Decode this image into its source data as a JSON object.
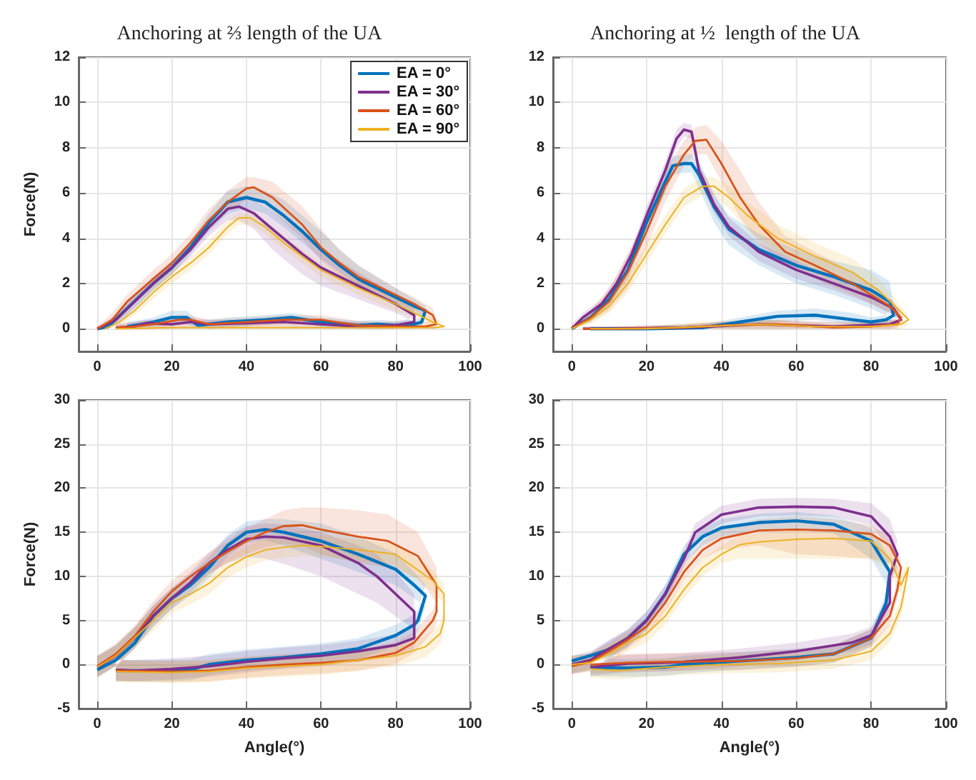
{
  "chart_data": [
    {
      "type": "line",
      "title": "Anchoring at ⅔ length of the UA",
      "ylabel": "Force(N)",
      "xlim": [
        -5,
        100
      ],
      "xticks": [
        0,
        20,
        40,
        60,
        80,
        100
      ],
      "ylim": [
        -1,
        12
      ],
      "yticks": [
        0,
        2,
        4,
        6,
        8,
        10,
        12
      ],
      "grid": true,
      "legend": "top right",
      "marker": "none",
      "series": [
        {
          "name": "EA = 0°",
          "color": "#0072bd",
          "x": [
            0,
            3,
            8,
            15,
            20,
            25,
            30,
            35,
            40,
            45,
            50,
            55,
            60,
            65,
            70,
            75,
            80,
            85,
            88,
            87,
            85,
            80,
            75,
            70,
            60,
            52,
            45,
            35,
            27,
            24,
            20,
            15,
            12,
            8
          ],
          "values": [
            0,
            0.1,
            0.9,
            2.0,
            2.7,
            3.6,
            4.7,
            5.6,
            5.8,
            5.6,
            5.0,
            4.3,
            3.5,
            2.8,
            2.2,
            1.8,
            1.4,
            1.0,
            0.8,
            0.3,
            0.2,
            0.15,
            0.2,
            0.15,
            0.3,
            0.5,
            0.4,
            0.3,
            0.15,
            0.5,
            0.5,
            0.3,
            0.2,
            0.1
          ],
          "lower": [
            0,
            0,
            0.6,
            1.7,
            2.4,
            3.3,
            4.3,
            5.1,
            5.3,
            5.1,
            4.5,
            3.8,
            3.1,
            2.5,
            1.9,
            1.5,
            1.1,
            0.7,
            0.5,
            0.1,
            0,
            0,
            0,
            0,
            0.1,
            0.3,
            0.2,
            0.1,
            0,
            0.2,
            0.2,
            0.1,
            0,
            0
          ],
          "upper": [
            0.1,
            0.3,
            1.2,
            2.3,
            3.0,
            3.9,
            5.1,
            6.1,
            6.3,
            6.1,
            5.7,
            5.0,
            4.3,
            3.5,
            2.8,
            2.3,
            1.8,
            1.3,
            1.0,
            0.5,
            0.4,
            0.35,
            0.4,
            0.35,
            0.5,
            0.7,
            0.6,
            0.5,
            0.35,
            0.8,
            0.8,
            0.5,
            0.4,
            0.3
          ]
        },
        {
          "name": "EA = 30°",
          "color": "#7e2f8e",
          "x": [
            0,
            5,
            10,
            15,
            20,
            25,
            30,
            35,
            38,
            42,
            47,
            55,
            60,
            70,
            80,
            85,
            85,
            80,
            70,
            60,
            50,
            40,
            30,
            25,
            20,
            13,
            10,
            5
          ],
          "values": [
            0,
            0.4,
            1.2,
            2.0,
            2.7,
            3.5,
            4.5,
            5.3,
            5.4,
            5.1,
            4.4,
            3.3,
            2.7,
            1.9,
            1.1,
            0.6,
            0.3,
            0.15,
            0.1,
            0.2,
            0.3,
            0.25,
            0.2,
            0.3,
            0.2,
            0.25,
            0.1,
            0.05
          ],
          "lower": [
            0,
            0.2,
            0.9,
            1.7,
            2.4,
            3.2,
            4.1,
            4.8,
            4.8,
            4.4,
            3.5,
            2.4,
            1.9,
            1.3,
            0.7,
            0.3,
            0.1,
            0,
            0,
            0,
            0.1,
            0.1,
            0,
            0.1,
            0,
            0.1,
            0,
            0
          ],
          "upper": [
            0.1,
            0.6,
            1.5,
            2.3,
            3.0,
            3.8,
            4.9,
            5.7,
            5.9,
            5.7,
            5.2,
            4.2,
            3.5,
            2.5,
            1.5,
            0.9,
            0.5,
            0.3,
            0.3,
            0.4,
            0.5,
            0.4,
            0.4,
            0.5,
            0.4,
            0.4,
            0.3,
            0.2
          ]
        },
        {
          "name": "EA = 60°",
          "color": "#d95319",
          "x": [
            0,
            4,
            8,
            15,
            20,
            25,
            30,
            35,
            40,
            42,
            47,
            55,
            60,
            65,
            70,
            80,
            85,
            90,
            91,
            88,
            80,
            70,
            60,
            50,
            40,
            30,
            25,
            22,
            15,
            10,
            5
          ],
          "values": [
            0,
            0.4,
            1.2,
            2.2,
            2.9,
            3.8,
            4.8,
            5.6,
            6.2,
            6.25,
            5.8,
            4.6,
            3.6,
            2.9,
            2.3,
            1.5,
            1.1,
            0.6,
            0.2,
            0.1,
            0.1,
            0.15,
            0.4,
            0.4,
            0.3,
            0.2,
            0.4,
            0.4,
            0.2,
            0.1,
            0.05
          ],
          "lower": [
            0,
            0.2,
            0.9,
            1.9,
            2.6,
            3.5,
            4.4,
            5.2,
            5.7,
            5.8,
            5.2,
            4.0,
            3.0,
            2.4,
            1.9,
            1.2,
            0.8,
            0.3,
            0,
            0,
            0,
            0,
            0.2,
            0.2,
            0.1,
            0,
            0.2,
            0.2,
            0,
            0,
            0
          ],
          "upper": [
            0.1,
            0.7,
            1.5,
            2.6,
            3.3,
            4.2,
            5.3,
            6.1,
            6.7,
            6.7,
            6.5,
            5.4,
            4.4,
            3.5,
            2.8,
            1.8,
            1.4,
            0.9,
            0.4,
            0.3,
            0.3,
            0.35,
            0.6,
            0.6,
            0.5,
            0.4,
            0.6,
            0.6,
            0.4,
            0.3,
            0.2
          ]
        },
        {
          "name": "EA = 90°",
          "color": "#edb120",
          "x": [
            2,
            6,
            10,
            15,
            20,
            25,
            30,
            35,
            38,
            41,
            45,
            50,
            55,
            60,
            70,
            80,
            85,
            90,
            93,
            90,
            80,
            60,
            40,
            20,
            5
          ],
          "values": [
            0,
            0.3,
            0.8,
            1.6,
            2.3,
            2.9,
            3.6,
            4.5,
            4.9,
            4.9,
            4.5,
            3.8,
            3.2,
            2.6,
            1.8,
            1.1,
            0.7,
            0.3,
            0.1,
            0.05,
            0.05,
            0.05,
            0.05,
            0.05,
            0
          ],
          "lower": [
            0,
            0.1,
            0.6,
            1.3,
            2.0,
            2.6,
            3.3,
            4.2,
            4.6,
            4.6,
            4.2,
            3.5,
            2.9,
            2.3,
            1.5,
            0.8,
            0.5,
            0.1,
            0,
            0,
            0,
            0,
            0,
            0,
            0
          ],
          "upper": [
            0.1,
            0.5,
            1.0,
            1.9,
            2.6,
            3.2,
            3.9,
            4.8,
            5.1,
            5.1,
            4.8,
            4.1,
            3.5,
            2.9,
            2.1,
            1.4,
            0.9,
            0.5,
            0.3,
            0.2,
            0.2,
            0.2,
            0.2,
            0.2,
            0.1
          ]
        }
      ]
    },
    {
      "type": "line",
      "title": "Anchoring at ½  length of the UA",
      "xlim": [
        -5,
        100
      ],
      "xticks": [
        0,
        20,
        40,
        60,
        80,
        100
      ],
      "ylim": [
        -1,
        12
      ],
      "yticks": [
        0,
        2,
        4,
        6,
        8,
        10,
        12
      ],
      "grid": true,
      "marker": "none",
      "series": [
        {
          "color": "#0072bd",
          "x": [
            0,
            5,
            10,
            15,
            20,
            25,
            27,
            30,
            32,
            34,
            38,
            42,
            50,
            60,
            70,
            80,
            85,
            86,
            84,
            80,
            75,
            65,
            55,
            45,
            35,
            20,
            5
          ],
          "values": [
            0,
            0.5,
            1.3,
            2.6,
            4.7,
            6.5,
            7.2,
            7.3,
            7.3,
            6.8,
            5.4,
            4.4,
            3.5,
            2.8,
            2.3,
            1.7,
            1.2,
            0.6,
            0.4,
            0.3,
            0.4,
            0.6,
            0.55,
            0.3,
            0.05,
            0,
            0
          ],
          "lower": [
            0,
            0.3,
            1.0,
            2.2,
            4.2,
            6.0,
            6.8,
            6.9,
            6.9,
            6.2,
            4.7,
            3.7,
            2.8,
            2.0,
            1.5,
            0.9,
            0.5,
            0.3,
            0.2,
            0.2,
            0.2,
            0.4,
            0.3,
            0.1,
            0,
            0,
            0
          ],
          "upper": [
            0.1,
            0.7,
            1.6,
            3.0,
            5.2,
            7.0,
            7.6,
            7.7,
            7.7,
            7.3,
            6.0,
            5.0,
            4.2,
            3.5,
            3.0,
            2.6,
            2.1,
            1.0,
            0.6,
            0.5,
            0.7,
            0.9,
            0.8,
            0.5,
            0.2,
            0.1,
            0.1
          ]
        },
        {
          "color": "#7e2f8e",
          "x": [
            0,
            3,
            8,
            12,
            16,
            20,
            25,
            28,
            30,
            32,
            34,
            38,
            42,
            50,
            60,
            70,
            80,
            86,
            88,
            85,
            70,
            50,
            30,
            10,
            3
          ],
          "values": [
            0,
            0.5,
            1.1,
            2.0,
            3.3,
            5.0,
            7.0,
            8.4,
            8.8,
            8.7,
            7.0,
            5.5,
            4.5,
            3.4,
            2.6,
            2.0,
            1.4,
            0.9,
            0.4,
            0.2,
            0.1,
            0.2,
            0.05,
            0,
            0
          ],
          "lower": [
            0,
            0.3,
            0.9,
            1.7,
            3.0,
            4.6,
            6.6,
            8.0,
            8.5,
            8.4,
            6.6,
            5.1,
            4.1,
            3.0,
            2.2,
            1.7,
            1.1,
            0.6,
            0.2,
            0,
            0,
            0,
            0,
            0,
            0
          ],
          "upper": [
            0.2,
            0.7,
            1.3,
            2.3,
            3.6,
            5.4,
            7.4,
            8.8,
            9.1,
            9.0,
            7.4,
            5.9,
            4.9,
            3.8,
            3.0,
            2.3,
            1.7,
            1.2,
            0.6,
            0.4,
            0.3,
            0.4,
            0.2,
            0.1,
            0.1
          ]
        },
        {
          "color": "#d95319",
          "x": [
            0,
            5,
            10,
            15,
            20,
            25,
            30,
            33,
            36,
            40,
            45,
            50,
            57,
            65,
            75,
            85,
            88,
            87,
            80,
            70,
            55,
            40,
            30,
            10,
            3
          ],
          "values": [
            0,
            0.5,
            1.2,
            2.5,
            4.3,
            6.3,
            7.7,
            8.3,
            8.35,
            7.3,
            5.8,
            4.6,
            3.4,
            2.8,
            2.0,
            1.0,
            0.5,
            0.2,
            0.1,
            0.05,
            0.2,
            0.15,
            0.05,
            0,
            0
          ],
          "lower": [
            0,
            0.3,
            0.8,
            1.8,
            3.6,
            5.6,
            7.2,
            7.7,
            7.7,
            6.5,
            4.9,
            3.8,
            2.8,
            2.2,
            1.5,
            0.7,
            0.3,
            0,
            0,
            0,
            0,
            0,
            0,
            0,
            0
          ],
          "upper": [
            0.1,
            0.8,
            1.8,
            3.3,
            5.0,
            7.0,
            8.3,
            8.9,
            9.0,
            8.3,
            7.0,
            5.6,
            4.1,
            3.4,
            2.5,
            1.3,
            0.8,
            0.4,
            0.3,
            0.2,
            0.4,
            0.3,
            0.2,
            0.1,
            0.1
          ]
        },
        {
          "color": "#edb120",
          "x": [
            0,
            5,
            10,
            15,
            20,
            25,
            30,
            35,
            38,
            42,
            47,
            55,
            65,
            75,
            82,
            87,
            90,
            88,
            80,
            65,
            50,
            35,
            20,
            5
          ],
          "values": [
            0,
            0.4,
            1.0,
            2.0,
            3.3,
            4.6,
            5.8,
            6.3,
            6.3,
            5.8,
            5.0,
            4.0,
            3.2,
            2.5,
            1.7,
            0.9,
            0.4,
            0.2,
            0.1,
            0.1,
            0.2,
            0.1,
            0,
            0
          ],
          "lower": [
            0,
            0.2,
            0.7,
            1.6,
            2.9,
            4.2,
            5.4,
            5.9,
            5.9,
            5.3,
            4.4,
            3.4,
            2.6,
            1.9,
            1.2,
            0.6,
            0.2,
            0,
            0,
            0,
            0,
            0,
            0,
            0
          ],
          "upper": [
            0.1,
            0.6,
            1.3,
            2.4,
            3.7,
            5.0,
            6.2,
            6.7,
            6.7,
            6.3,
            5.6,
            4.6,
            3.8,
            3.1,
            2.2,
            1.2,
            0.6,
            0.4,
            0.3,
            0.3,
            0.4,
            0.3,
            0.1,
            0.1
          ]
        }
      ]
    },
    {
      "type": "line",
      "xlabel": "Angle(°)",
      "ylabel": "Force(N)",
      "xlim": [
        -5,
        100
      ],
      "xticks": [
        0,
        20,
        40,
        60,
        80,
        100
      ],
      "ylim": [
        -5,
        30
      ],
      "yticks": [
        -5,
        0,
        5,
        10,
        15,
        20,
        25,
        30
      ],
      "grid": true,
      "marker": "none",
      "series": [
        {
          "color": "#0072bd",
          "x": [
            0,
            5,
            10,
            15,
            20,
            25,
            30,
            35,
            40,
            45,
            50,
            60,
            70,
            80,
            85,
            88,
            86,
            85,
            80,
            70,
            60,
            50,
            40,
            30,
            25,
            15,
            5
          ],
          "values": [
            -0.6,
            0.5,
            2.4,
            5.5,
            7.5,
            9,
            11,
            13.5,
            15,
            15.3,
            15,
            14,
            12.5,
            10.8,
            9,
            7.8,
            5,
            4.5,
            3.3,
            1.8,
            1.2,
            0.8,
            0.5,
            0,
            -0.6,
            -0.7,
            -0.7
          ],
          "lower": [
            -1.4,
            -0.2,
            1.8,
            4.3,
            6.3,
            7.8,
            9.8,
            12.3,
            13.8,
            14.1,
            13.5,
            12,
            10.5,
            9,
            7.5,
            6.6,
            3.8,
            3.3,
            2.1,
            0.6,
            0,
            -0.4,
            -0.7,
            -1.2,
            -1.8,
            -1.9,
            -1.9
          ],
          "upper": [
            1.0,
            2.2,
            4.2,
            6.7,
            8.7,
            10.2,
            12.2,
            14.7,
            16.2,
            16.5,
            16.5,
            16,
            14.5,
            12.6,
            10.5,
            9.0,
            6.2,
            5.7,
            4.5,
            3.0,
            2.4,
            2.0,
            1.7,
            1.2,
            0.6,
            0.5,
            0.5
          ]
        },
        {
          "color": "#7e2f8e",
          "x": [
            0,
            5,
            10,
            15,
            20,
            25,
            30,
            35,
            40,
            45,
            50,
            60,
            70,
            75,
            80,
            85,
            85,
            80,
            70,
            60,
            50,
            40,
            30,
            20,
            10,
            5
          ],
          "values": [
            -0.3,
            1,
            3,
            5.5,
            7.5,
            9.3,
            11.5,
            13,
            14.2,
            14.5,
            14.4,
            13.5,
            11.5,
            10,
            8,
            6,
            3,
            2.2,
            1.5,
            1,
            0.7,
            0.3,
            -0.2,
            -0.5,
            -0.7,
            -0.6
          ],
          "lower": [
            -1.5,
            -0.2,
            1.8,
            4.3,
            6.3,
            8.1,
            10.3,
            11.5,
            12.2,
            12.0,
            11.4,
            10,
            8,
            7,
            5.5,
            4,
            1.8,
            1.0,
            0.3,
            -0.2,
            -0.5,
            -0.9,
            -1.4,
            -1.7,
            -1.9,
            -1.8
          ],
          "upper": [
            0.9,
            2.2,
            4.2,
            6.7,
            8.7,
            10.5,
            12.7,
            14.5,
            15.7,
            16.0,
            15.9,
            15,
            13.5,
            12.5,
            10.5,
            8,
            4.2,
            3.4,
            2.7,
            2.2,
            1.9,
            1.5,
            1.0,
            0.7,
            0.5,
            0.6
          ]
        },
        {
          "color": "#d95319",
          "x": [
            0,
            5,
            10,
            15,
            20,
            25,
            30,
            35,
            40,
            45,
            50,
            55,
            60,
            70,
            78,
            86,
            91,
            91,
            90,
            85,
            80,
            70,
            60,
            50,
            40,
            30,
            20,
            5
          ],
          "values": [
            -0.2,
            1.2,
            3.2,
            6,
            8.3,
            10,
            11.5,
            12.8,
            14,
            15,
            15.7,
            15.8,
            15.3,
            14.5,
            14,
            12.3,
            9,
            6,
            5,
            2.5,
            1.3,
            0.5,
            0.2,
            0,
            -0.3,
            -0.7,
            -0.8,
            -0.7
          ],
          "lower": [
            -1.4,
            0,
            2,
            4.8,
            7.1,
            8.8,
            10.3,
            11.6,
            12.5,
            13.3,
            13.7,
            13.5,
            12.5,
            11.5,
            11,
            9.8,
            7,
            4.8,
            3.8,
            1.3,
            0.1,
            -0.7,
            -1,
            -1.2,
            -1.5,
            -1.9,
            -2,
            -1.9
          ],
          "upper": [
            1,
            2.4,
            4.4,
            7.2,
            9.5,
            11.2,
            12.7,
            14,
            15.5,
            16.5,
            17.5,
            17.8,
            17.8,
            17.5,
            17,
            15,
            11,
            7.2,
            6.2,
            3.7,
            2.5,
            1.7,
            1.4,
            1.2,
            0.9,
            0.5,
            0.4,
            0.5
          ]
        },
        {
          "color": "#edb120",
          "x": [
            0,
            5,
            10,
            15,
            20,
            25,
            30,
            35,
            40,
            45,
            50,
            55,
            60,
            70,
            80,
            85,
            90,
            93,
            93,
            92,
            88,
            80,
            70,
            60,
            50,
            40,
            30,
            20,
            5
          ],
          "values": [
            -0.3,
            1,
            3,
            5,
            7,
            8,
            9.2,
            11,
            12.2,
            13,
            13.3,
            13.5,
            13.4,
            13,
            12.5,
            11,
            9.5,
            8,
            5,
            3.5,
            2,
            1,
            0.5,
            0,
            -0.2,
            -0.4,
            -0.8,
            -0.9,
            -0.8
          ],
          "lower": [
            -1.5,
            -0.2,
            1.8,
            3.8,
            5.8,
            6.8,
            8,
            9.8,
            11,
            11.8,
            12.1,
            12.3,
            12.2,
            11.8,
            11.3,
            9.8,
            8.3,
            6.8,
            3.8,
            2.3,
            0.8,
            -0.2,
            -0.7,
            -1.2,
            -1.4,
            -1.6,
            -2,
            -2.1,
            -2
          ],
          "upper": [
            0.9,
            2.2,
            4.2,
            6.2,
            8.2,
            9.2,
            10.4,
            12.2,
            13.4,
            14.2,
            14.5,
            14.7,
            14.6,
            14.2,
            13.7,
            12.2,
            10.7,
            9.2,
            6.2,
            4.7,
            3.2,
            2.2,
            1.7,
            1.2,
            1,
            0.8,
            0.4,
            0.3,
            0.4
          ]
        }
      ]
    },
    {
      "type": "line",
      "xlabel": "Angle(°)",
      "xlim": [
        -5,
        100
      ],
      "xticks": [
        0,
        20,
        40,
        60,
        80,
        100
      ],
      "ylim": [
        -5,
        30
      ],
      "yticks": [
        -5,
        0,
        5,
        10,
        15,
        20,
        25,
        30
      ],
      "grid": true,
      "marker": "none",
      "series": [
        {
          "color": "#0072bd",
          "x": [
            0,
            5,
            10,
            15,
            20,
            25,
            30,
            35,
            40,
            50,
            60,
            70,
            80,
            85,
            84,
            80,
            70,
            60,
            45,
            30,
            25,
            15,
            5
          ],
          "values": [
            0.4,
            1.0,
            1.7,
            3,
            5,
            8,
            12.5,
            14.5,
            15.5,
            16.1,
            16.3,
            15.9,
            14,
            10.5,
            7,
            3,
            1.2,
            0.8,
            0.4,
            0,
            -0.3,
            -0.4,
            -0.3
          ],
          "lower": [
            -1,
            -0.7,
            0.7,
            2,
            4,
            7,
            11.5,
            13.5,
            14.5,
            15.1,
            15.3,
            14.9,
            12,
            8.5,
            6,
            2,
            0.2,
            -0.2,
            -0.6,
            -1,
            -1.3,
            -1.4,
            -1.3
          ],
          "upper": [
            1,
            1.3,
            2.7,
            4,
            6,
            9,
            13.5,
            15.5,
            16.5,
            17.1,
            17.3,
            16.9,
            15.5,
            12,
            8,
            4,
            2.2,
            1.8,
            1.4,
            1,
            0.7,
            0.6,
            0.7
          ]
        },
        {
          "color": "#7e2f8e",
          "x": [
            0,
            5,
            10,
            15,
            20,
            25,
            30,
            33,
            40,
            50,
            60,
            70,
            80,
            85,
            87,
            85,
            85,
            80,
            75,
            60,
            45,
            30,
            25,
            15,
            5
          ],
          "values": [
            0,
            0.5,
            1.8,
            3,
            5,
            8,
            12,
            15,
            17,
            17.8,
            17.9,
            17.8,
            16.8,
            14.5,
            12.5,
            10,
            7,
            3.3,
            2.5,
            1.5,
            0.8,
            0.3,
            0.2,
            0.1,
            -0.3
          ],
          "lower": [
            -1,
            -0.5,
            0.8,
            2,
            4,
            7,
            11,
            14,
            16,
            16.8,
            16.9,
            16.8,
            15.8,
            13,
            11,
            9,
            6,
            2.3,
            1.5,
            0.5,
            -0.2,
            -0.7,
            -0.8,
            -0.9,
            -1.3
          ],
          "upper": [
            1,
            1.5,
            2.8,
            4,
            6,
            9,
            13,
            16,
            18,
            18.8,
            18.9,
            18.8,
            18.3,
            16.5,
            14,
            11,
            8,
            4.3,
            3.5,
            2.5,
            1.8,
            1.3,
            1.2,
            1.1,
            0.7
          ]
        },
        {
          "color": "#d95319",
          "x": [
            0,
            5,
            10,
            15,
            20,
            25,
            30,
            35,
            40,
            50,
            60,
            70,
            80,
            85,
            88,
            87,
            85,
            80,
            70,
            60,
            45,
            30,
            25,
            15,
            5
          ],
          "values": [
            -0.2,
            0.3,
            1.5,
            2.8,
            4.3,
            7,
            10.5,
            13,
            14.3,
            15.2,
            15.3,
            15.2,
            14.8,
            13.5,
            11,
            8.5,
            5.5,
            3,
            1.2,
            0.7,
            0.4,
            0.3,
            0.3,
            0.2,
            0
          ],
          "lower": [
            -1.2,
            -0.7,
            0.5,
            1.8,
            3.3,
            6,
            9.5,
            12,
            13,
            13.5,
            12.5,
            12.3,
            12,
            11.5,
            9.5,
            7.5,
            4.5,
            2,
            0.2,
            -0.3,
            -0.6,
            -0.7,
            -0.7,
            -0.8,
            -1
          ],
          "upper": [
            0.8,
            1.3,
            2.5,
            3.8,
            5.3,
            8,
            11.5,
            14,
            15.5,
            16.5,
            16.8,
            16.5,
            15.8,
            14.5,
            12,
            9.5,
            6.5,
            4,
            2.2,
            1.7,
            1.4,
            1.3,
            1.3,
            1.2,
            1
          ]
        },
        {
          "color": "#edb120",
          "x": [
            0,
            5,
            10,
            15,
            20,
            25,
            30,
            35,
            40,
            45,
            50,
            60,
            70,
            80,
            85,
            88,
            90,
            88,
            85,
            80,
            70,
            55,
            40,
            25,
            12,
            5
          ],
          "values": [
            0,
            0.2,
            1.2,
            2.5,
            3.5,
            5.5,
            8.5,
            11,
            12.5,
            13.6,
            13.9,
            14.2,
            14.3,
            14,
            12,
            9,
            11,
            6.5,
            3.5,
            1.5,
            0.5,
            0.1,
            0,
            -0.3,
            -0.7,
            -0.5
          ],
          "lower": [
            -1,
            -0.8,
            0.2,
            1.5,
            2.5,
            4.5,
            7.5,
            10,
            11.5,
            12,
            12,
            12,
            12,
            12,
            10.5,
            8,
            10,
            5.5,
            2.5,
            0.5,
            -0.5,
            -0.9,
            -1,
            -1.3,
            -1.7,
            -1.5
          ],
          "upper": [
            1,
            1.2,
            2.2,
            3.5,
            4.5,
            6.5,
            9.5,
            12,
            13.5,
            14.6,
            14.9,
            15.2,
            15.3,
            15,
            13,
            10,
            12,
            7.5,
            4.5,
            2.5,
            1.5,
            1.1,
            1,
            0.7,
            0.3,
            0.5
          ]
        }
      ]
    }
  ]
}
